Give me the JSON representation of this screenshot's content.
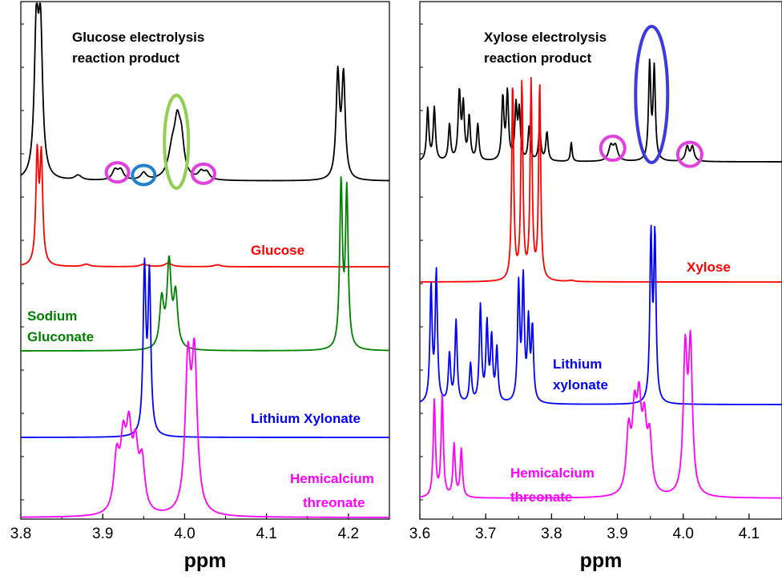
{
  "chart_data": [
    {
      "type": "line",
      "title": "",
      "xlabel": "ppm",
      "ylabel": "",
      "xlim": [
        3.8,
        4.25
      ],
      "xticks": [
        "3.8",
        "3.9",
        "4.0",
        "4.1",
        "4.2"
      ],
      "tick_values": [
        3.8,
        3.9,
        4.0,
        4.1,
        4.2
      ],
      "grid": false,
      "series": [
        {
          "name": "Glucose electrolysis reaction product",
          "color": "#000000",
          "baseline": 0,
          "peaks": [
            [
              3.819,
              60,
              0.003
            ],
            [
              3.824,
              58,
              0.003
            ],
            [
              3.87,
              2,
              0.005
            ],
            [
              3.915,
              4,
              0.004
            ],
            [
              3.922,
              4,
              0.004
            ],
            [
              3.95,
              3,
              0.004
            ],
            [
              3.985,
              12,
              0.006
            ],
            [
              3.991,
              18,
              0.004
            ],
            [
              3.996,
              14,
              0.004
            ],
            [
              4.02,
              3,
              0.004
            ],
            [
              4.027,
              3,
              0.004
            ],
            [
              4.187,
              43,
              0.0025
            ],
            [
              4.194,
              42,
              0.0025
            ]
          ]
        },
        {
          "name": "Glucose",
          "color": "#ff0000",
          "baseline": 0,
          "peaks": [
            [
              3.82,
              45,
              0.002
            ],
            [
              3.825,
              44,
              0.002
            ],
            [
              3.88,
              1,
              0.005
            ],
            [
              3.95,
              1,
              0.005
            ],
            [
              3.98,
              1.5,
              0.005
            ],
            [
              4.04,
              0.8,
              0.005
            ]
          ]
        },
        {
          "name": "Sodium Gluconate",
          "color": "#008000",
          "baseline": 0,
          "peaks": [
            [
              3.972,
              20,
              0.003
            ],
            [
              3.981,
              35,
              0.003
            ],
            [
              3.989,
              22,
              0.003
            ],
            [
              4.191,
              68,
              0.002
            ],
            [
              4.198,
              65,
              0.002
            ]
          ]
        },
        {
          "name": "Lithium Xylonate",
          "color": "#0000ff",
          "baseline": 0,
          "peaks": [
            [
              3.951,
              68,
              0.002
            ],
            [
              3.957,
              65,
              0.002
            ]
          ]
        },
        {
          "name": "Hemicalcium threonate",
          "color": "#ff00ff",
          "baseline": 0,
          "peaks": [
            [
              3.917,
              22,
              0.004
            ],
            [
              3.925,
              26,
              0.004
            ],
            [
              3.932,
              30,
              0.004
            ],
            [
              3.94,
              24,
              0.004
            ],
            [
              3.948,
              20,
              0.004
            ],
            [
              4.004,
              60,
              0.004
            ],
            [
              4.012,
              62,
              0.004
            ]
          ]
        }
      ],
      "annotations": [
        {
          "text": "Glucose electrolysis",
          "color": "#000000"
        },
        {
          "text": "reaction product",
          "color": "#000000"
        },
        {
          "text": "Glucose",
          "color": "#ff0000"
        },
        {
          "text": "Sodium",
          "color": "#008000"
        },
        {
          "text": "Gluconate",
          "color": "#008000"
        },
        {
          "text": "Lithium Xylonate",
          "color": "#0000ff"
        },
        {
          "text": "Hemicalcium",
          "color": "#ff00ff"
        },
        {
          "text": "threonate",
          "color": "#ff00ff"
        }
      ]
    },
    {
      "type": "line",
      "title": "",
      "xlabel": "ppm",
      "ylabel": "",
      "xlim": [
        3.6,
        4.15
      ],
      "xticks": [
        "3.6",
        "3.7",
        "3.8",
        "3.9",
        "4.0",
        "4.1"
      ],
      "tick_values": [
        3.6,
        3.7,
        3.8,
        3.9,
        4.0,
        4.1
      ],
      "grid": false,
      "series": [
        {
          "name": "Xylose electrolysis reaction product",
          "color": "#000000",
          "baseline": 0,
          "peaks": [
            [
              3.612,
              22,
              0.002
            ],
            [
              3.622,
              22,
              0.002
            ],
            [
              3.645,
              15,
              0.002
            ],
            [
              3.66,
              28,
              0.0022
            ],
            [
              3.666,
              22,
              0.002
            ],
            [
              3.675,
              18,
              0.002
            ],
            [
              3.688,
              15,
              0.002
            ],
            [
              3.726,
              26,
              0.002
            ],
            [
              3.733,
              28,
              0.002
            ],
            [
              3.746,
              22,
              0.002
            ],
            [
              3.751,
              20,
              0.002
            ],
            [
              3.766,
              14,
              0.002
            ],
            [
              3.782,
              14,
              0.002
            ],
            [
              3.793,
              12,
              0.002
            ],
            [
              3.83,
              8,
              0.0015
            ],
            [
              3.89,
              6,
              0.004
            ],
            [
              3.897,
              6,
              0.004
            ],
            [
              3.949,
              40,
              0.002
            ],
            [
              3.956,
              38,
              0.002
            ],
            [
              4.006,
              6,
              0.003
            ],
            [
              4.014,
              6,
              0.003
            ]
          ]
        },
        {
          "name": "Xylose",
          "color": "#ff0000",
          "baseline": 0,
          "peaks": [
            [
              3.741,
              82,
              0.0018
            ],
            [
              3.755,
              82,
              0.0018
            ],
            [
              3.769,
              82,
              0.0018
            ],
            [
              3.782,
              82,
              0.0018
            ],
            [
              3.83,
              0.5,
              0.005
            ]
          ]
        },
        {
          "name": "Lithium xylonate",
          "color": "#0000ff",
          "baseline": 0,
          "peaks": [
            [
              3.617,
              48,
              0.002
            ],
            [
              3.625,
              54,
              0.002
            ],
            [
              3.645,
              20,
              0.002
            ],
            [
              3.655,
              34,
              0.002
            ],
            [
              3.677,
              16,
              0.002
            ],
            [
              3.692,
              40,
              0.002
            ],
            [
              3.702,
              32,
              0.002
            ],
            [
              3.709,
              26,
              0.002
            ],
            [
              3.717,
              22,
              0.002
            ],
            [
              3.75,
              48,
              0.002
            ],
            [
              3.757,
              50,
              0.002
            ],
            [
              3.765,
              32,
              0.002
            ],
            [
              3.771,
              30,
              0.002
            ],
            [
              3.951,
              68,
              0.002
            ],
            [
              3.957,
              68,
              0.002
            ]
          ]
        },
        {
          "name": "Hemicalcium threonate",
          "color": "#ff00ff",
          "baseline": 0,
          "peaks": [
            [
              3.622,
              40,
              0.002
            ],
            [
              3.634,
              42,
              0.002
            ],
            [
              3.652,
              22,
              0.002
            ],
            [
              3.663,
              20,
              0.002
            ],
            [
              3.917,
              25,
              0.004
            ],
            [
              3.926,
              30,
              0.004
            ],
            [
              3.933,
              33,
              0.004
            ],
            [
              3.941,
              26,
              0.004
            ],
            [
              3.949,
              22,
              0.004
            ],
            [
              4.003,
              58,
              0.0035
            ],
            [
              4.011,
              60,
              0.0035
            ]
          ]
        }
      ],
      "annotations": [
        {
          "text": "Xylose electrolysis",
          "color": "#000000"
        },
        {
          "text": "reaction product",
          "color": "#000000"
        },
        {
          "text": "Xylose",
          "color": "#ff0000"
        },
        {
          "text": "Lithium",
          "color": "#0000ff"
        },
        {
          "text": "xylonate",
          "color": "#0000ff"
        },
        {
          "text": "Hemicalcium",
          "color": "#ff00ff"
        },
        {
          "text": "threonate",
          "color": "#ff00ff"
        }
      ]
    }
  ],
  "markers": {
    "left": [
      {
        "shape": "circle",
        "color": "#e040e0",
        "center_ppm": 3.918,
        "series": 0
      },
      {
        "shape": "circle",
        "color": "#2080d0",
        "center_ppm": 3.95,
        "series": 0
      },
      {
        "shape": "ellipse",
        "color": "#90d050",
        "center_ppm": 3.99,
        "series": 0
      },
      {
        "shape": "circle",
        "color": "#e040e0",
        "center_ppm": 4.023,
        "series": 0
      }
    ],
    "right": [
      {
        "shape": "circle",
        "color": "#e040e0",
        "center_ppm": 3.893,
        "series": 0
      },
      {
        "shape": "ellipse",
        "color": "#3a3ae0",
        "center_ppm": 3.952,
        "series": 0
      },
      {
        "shape": "circle",
        "color": "#e040e0",
        "center_ppm": 4.01,
        "series": 0
      }
    ]
  }
}
